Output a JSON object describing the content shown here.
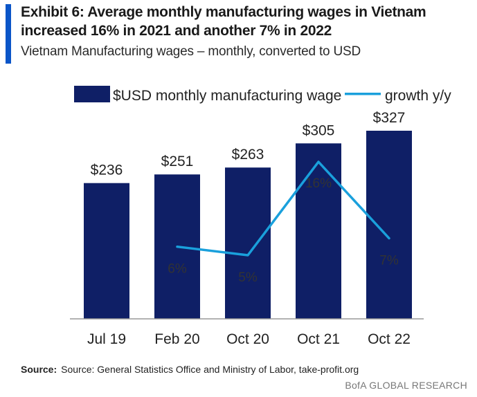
{
  "header": {
    "title": "Exhibit 6: Average monthly manufacturing wages in Vietnam increased 16% in 2021 and another 7% in 2022",
    "subtitle": "Vietnam Manufacturing wages – monthly, converted to USD"
  },
  "colors": {
    "accent": "#0a55c8",
    "bar": "#0f1f66",
    "line": "#1aa0dc"
  },
  "chart_data": {
    "type": "bar",
    "categories": [
      "Jul 19",
      "Feb 20",
      "Oct 20",
      "Oct 21",
      "Oct 22"
    ],
    "series": [
      {
        "name": "$USD monthly manufacturing wage",
        "type": "bar",
        "values": [
          236,
          251,
          263,
          305,
          327
        ],
        "labels": [
          "$236",
          "$251",
          "$263",
          "$305",
          "$327"
        ]
      },
      {
        "name": "growth y/y",
        "type": "line",
        "values": [
          null,
          6,
          5,
          16,
          7
        ],
        "labels": [
          "",
          "6%",
          "5%",
          "16%",
          "7%"
        ]
      }
    ],
    "legend": "top",
    "grid": false
  },
  "footer": {
    "source_label": "Source:",
    "source_text": "Source: General Statistics Office and Ministry of Labor, take-profit.org",
    "brand": "BofA GLOBAL RESEARCH"
  }
}
